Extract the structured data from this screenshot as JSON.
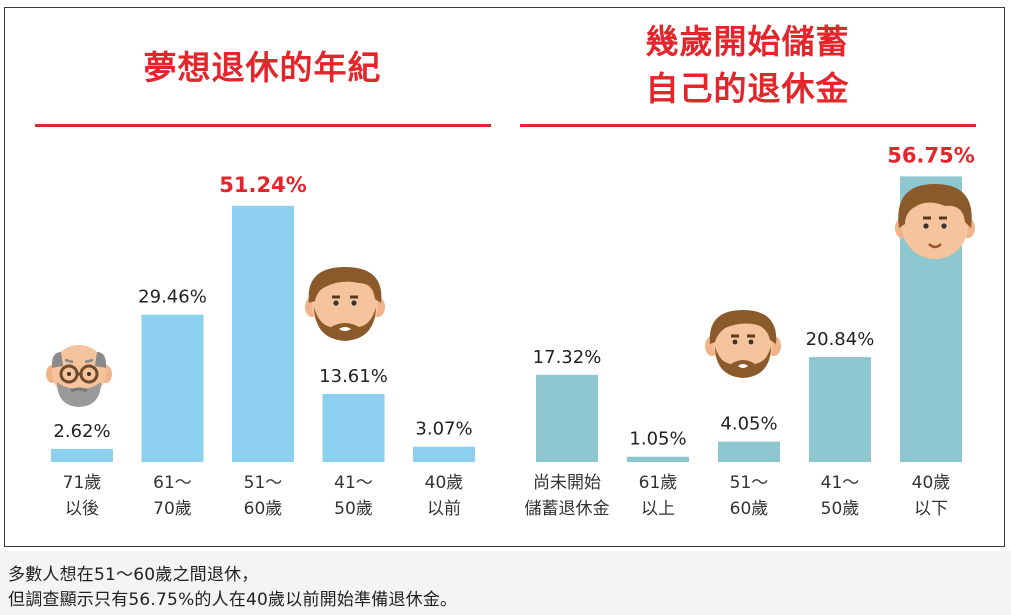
{
  "chart_data": [
    {
      "type": "bar",
      "title": "夢想退休的年紀",
      "categories": [
        [
          "71歲",
          "以後"
        ],
        [
          "61〜",
          "70歲"
        ],
        [
          "51〜",
          "60歲"
        ],
        [
          "41〜",
          "50歲"
        ],
        [
          "40歲",
          "以前"
        ]
      ],
      "values": [
        2.62,
        29.46,
        51.24,
        13.61,
        3.07
      ],
      "value_labels": [
        "2.62%",
        "29.46%",
        "51.24%",
        "13.61%",
        "3.07%"
      ],
      "highlight_index": 2,
      "bar_color": "#8ccfee",
      "ylim": [
        0,
        60
      ]
    },
    {
      "type": "bar",
      "title_lines": [
        "幾歲開始儲蓄",
        "自己的退休金"
      ],
      "categories": [
        [
          "尚未開始",
          "儲蓄退休金"
        ],
        [
          "61歲",
          "以上"
        ],
        [
          "51〜",
          "60歲"
        ],
        [
          "41〜",
          "50歲"
        ],
        [
          "40歲",
          "以下"
        ]
      ],
      "values": [
        17.32,
        1.05,
        4.05,
        20.84,
        56.75
      ],
      "value_labels": [
        "17.32%",
        "1.05%",
        "4.05%",
        "20.84%",
        "56.75%"
      ],
      "highlight_index": 4,
      "bar_color": "#8ec7cf",
      "ylim": [
        0,
        60
      ]
    }
  ],
  "colors": {
    "accent": "#e3262b",
    "text": "#222222"
  },
  "icons": [
    "old-man-face-icon",
    "bearded-man-face-icon",
    "bearded-man-face-icon",
    "young-man-face-icon"
  ],
  "footer": {
    "line1": "多數人想在51〜60歲之間退休，",
    "line2": "但調查顯示只有56.75%的人在40歲以前開始準備退休金。"
  }
}
